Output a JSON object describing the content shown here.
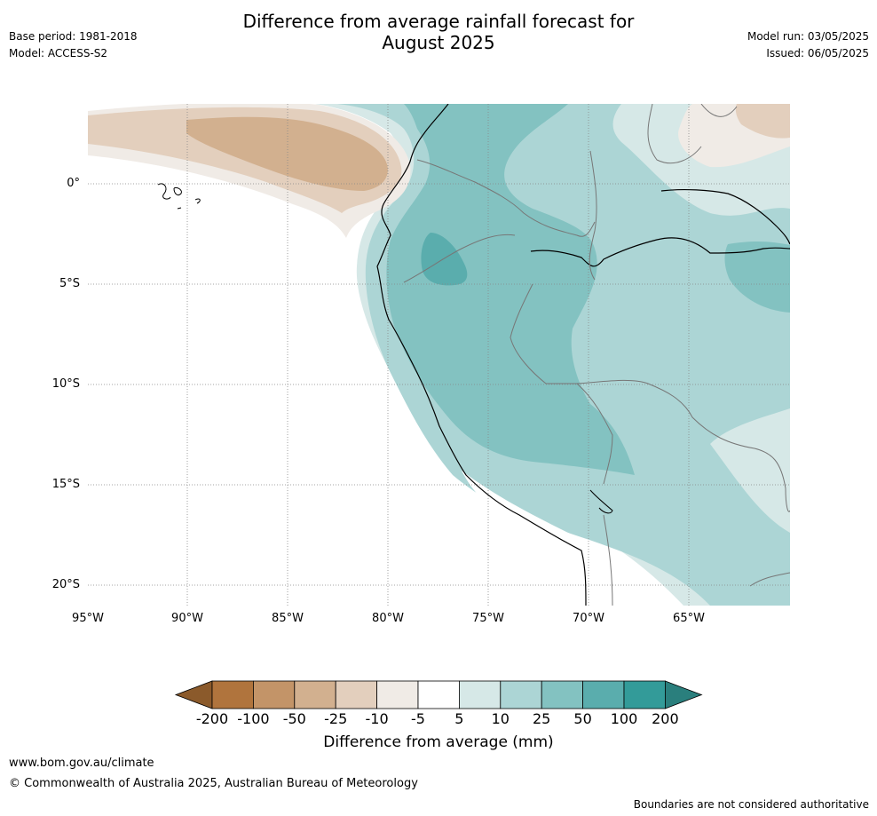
{
  "header": {
    "title_line1": "Difference from average rainfall forecast for",
    "title_line2": "August 2025",
    "base_period": "Base period: 1981-2018",
    "model": "Model: ACCESS-S2",
    "model_run": "Model run: 03/05/2025",
    "issued": "Issued: 06/05/2025"
  },
  "map": {
    "lat_labels": [
      "0°",
      "5°S",
      "10°S",
      "15°S",
      "20°S"
    ],
    "lon_labels": [
      "95°W",
      "90°W",
      "85°W",
      "80°W",
      "75°W",
      "70°W",
      "65°W"
    ],
    "extent": {
      "lon_min": -95,
      "lon_max": -60,
      "lat_min": -21,
      "lat_max": 4
    }
  },
  "colorbar": {
    "title": "Difference from average (mm)",
    "ticks": [
      "-200",
      "-100",
      "-50",
      "-25",
      "-10",
      "-5",
      "5",
      "10",
      "25",
      "50",
      "100",
      "200"
    ],
    "colors": [
      "#8b5a2b",
      "#b0743d",
      "#c39468",
      "#d2b08f",
      "#e3cfbd",
      "#f0ebe6",
      "#ffffff",
      "#d6e8e7",
      "#acd5d5",
      "#83c2c1",
      "#5aadad",
      "#339b99",
      "#2a7f7d"
    ]
  },
  "footer": {
    "url": "www.bom.gov.au/climate",
    "copyright": "© Commonwealth of Australia 2025, Australian Bureau of Meteorology",
    "note": "Boundaries are not considered authoritative"
  }
}
